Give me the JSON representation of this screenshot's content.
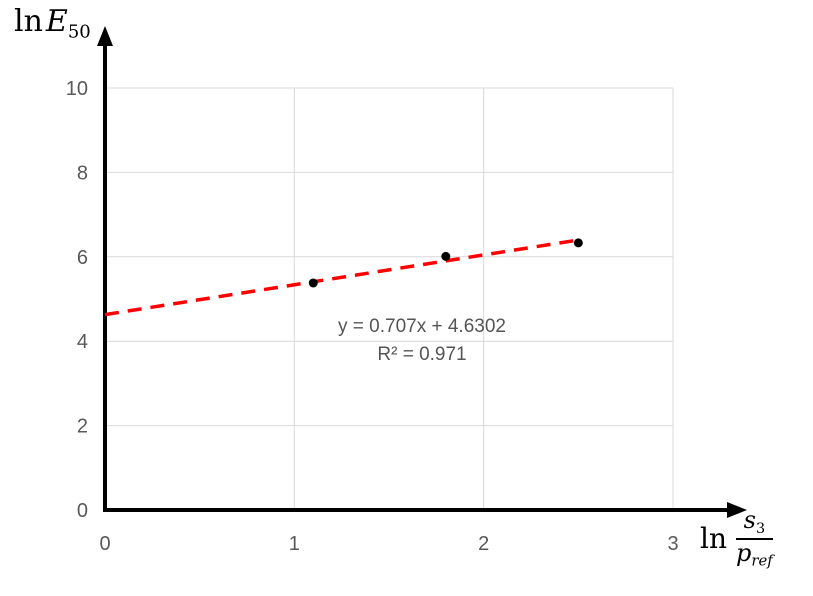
{
  "chart_data": {
    "type": "scatter",
    "title": "",
    "points": [
      {
        "x": 1.1,
        "y": 5.38
      },
      {
        "x": 1.8,
        "y": 6.01
      },
      {
        "x": 2.5,
        "y": 6.33
      }
    ],
    "trendline": {
      "kind": "linear",
      "slope": 0.707,
      "intercept": 4.6302,
      "x_start": 0,
      "x_end": 2.52,
      "style": "dashed",
      "color": "#fe0000"
    },
    "annotation": {
      "equation": "y = 0.707x + 4.6302",
      "r_squared": "R² = 0.971"
    },
    "x_axis": {
      "ticks": [
        0,
        1,
        2,
        3
      ],
      "range_shown": [
        0,
        3
      ],
      "label": {
        "prefix": "ln",
        "numerator_var": "s",
        "numerator_sub": "3",
        "denominator_var": "p",
        "denominator_sub": "ref"
      }
    },
    "y_axis": {
      "ticks": [
        0,
        2,
        4,
        6,
        8,
        10
      ],
      "range_shown": [
        0,
        10
      ],
      "label": {
        "prefix": "ln",
        "var": "E",
        "sub": "50"
      }
    },
    "grid": {
      "visible": true,
      "color": "#d9d9d9"
    },
    "colors": {
      "points": "#000000",
      "axes": "#000000",
      "tick_labels": "#595959",
      "annotation_text": "#555555"
    },
    "legend": {
      "visible": false
    }
  }
}
